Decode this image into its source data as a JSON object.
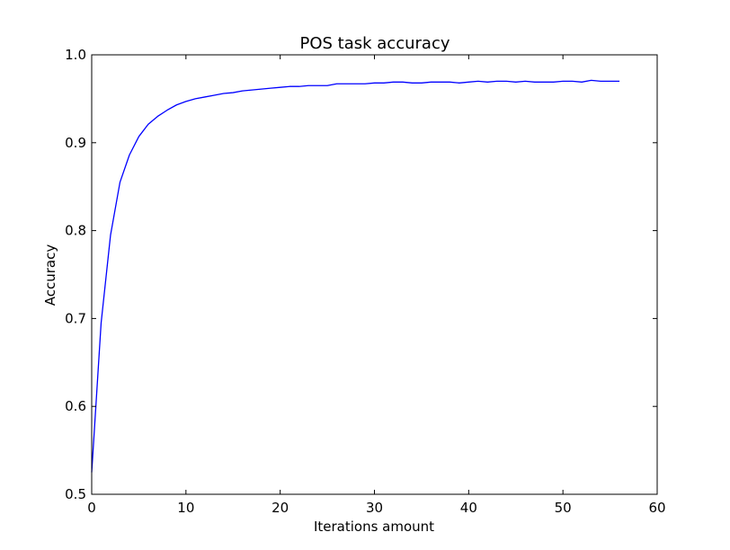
{
  "chart_data": {
    "type": "line",
    "title": "POS task accuracy",
    "xlabel": "Iterations amount",
    "ylabel": "Accuracy",
    "xlim": [
      0,
      60
    ],
    "ylim": [
      0.5,
      1.0
    ],
    "xticks": [
      0,
      10,
      20,
      30,
      40,
      50,
      60
    ],
    "xtick_labels": [
      "0",
      "10",
      "20",
      "30",
      "40",
      "50",
      "60"
    ],
    "yticks": [
      0.5,
      0.6,
      0.7,
      0.8,
      0.9,
      1.0
    ],
    "ytick_labels": [
      "0.5",
      "0.6",
      "0.7",
      "0.8",
      "0.9",
      "1.0"
    ],
    "grid": false,
    "line_color": "#0000ff",
    "series": [
      {
        "x": [
          0,
          1,
          2,
          3,
          4,
          5,
          6,
          7,
          8,
          9,
          10,
          11,
          12,
          13,
          14,
          15,
          16,
          17,
          18,
          19,
          20,
          21,
          22,
          23,
          24,
          25,
          26,
          27,
          28,
          29,
          30,
          31,
          32,
          33,
          34,
          35,
          36,
          37,
          38,
          39,
          40,
          41,
          42,
          43,
          44,
          45,
          46,
          47,
          48,
          49,
          50,
          51,
          52,
          53,
          54,
          55,
          56
        ],
        "y": [
          0.525,
          0.695,
          0.795,
          0.855,
          0.886,
          0.907,
          0.921,
          0.93,
          0.937,
          0.943,
          0.947,
          0.95,
          0.952,
          0.954,
          0.956,
          0.957,
          0.959,
          0.96,
          0.961,
          0.962,
          0.963,
          0.964,
          0.964,
          0.965,
          0.965,
          0.965,
          0.967,
          0.967,
          0.967,
          0.967,
          0.968,
          0.968,
          0.969,
          0.969,
          0.968,
          0.968,
          0.969,
          0.969,
          0.969,
          0.968,
          0.969,
          0.97,
          0.969,
          0.97,
          0.97,
          0.969,
          0.97,
          0.969,
          0.969,
          0.969,
          0.97,
          0.97,
          0.969,
          0.971,
          0.97,
          0.97,
          0.97
        ]
      }
    ]
  }
}
